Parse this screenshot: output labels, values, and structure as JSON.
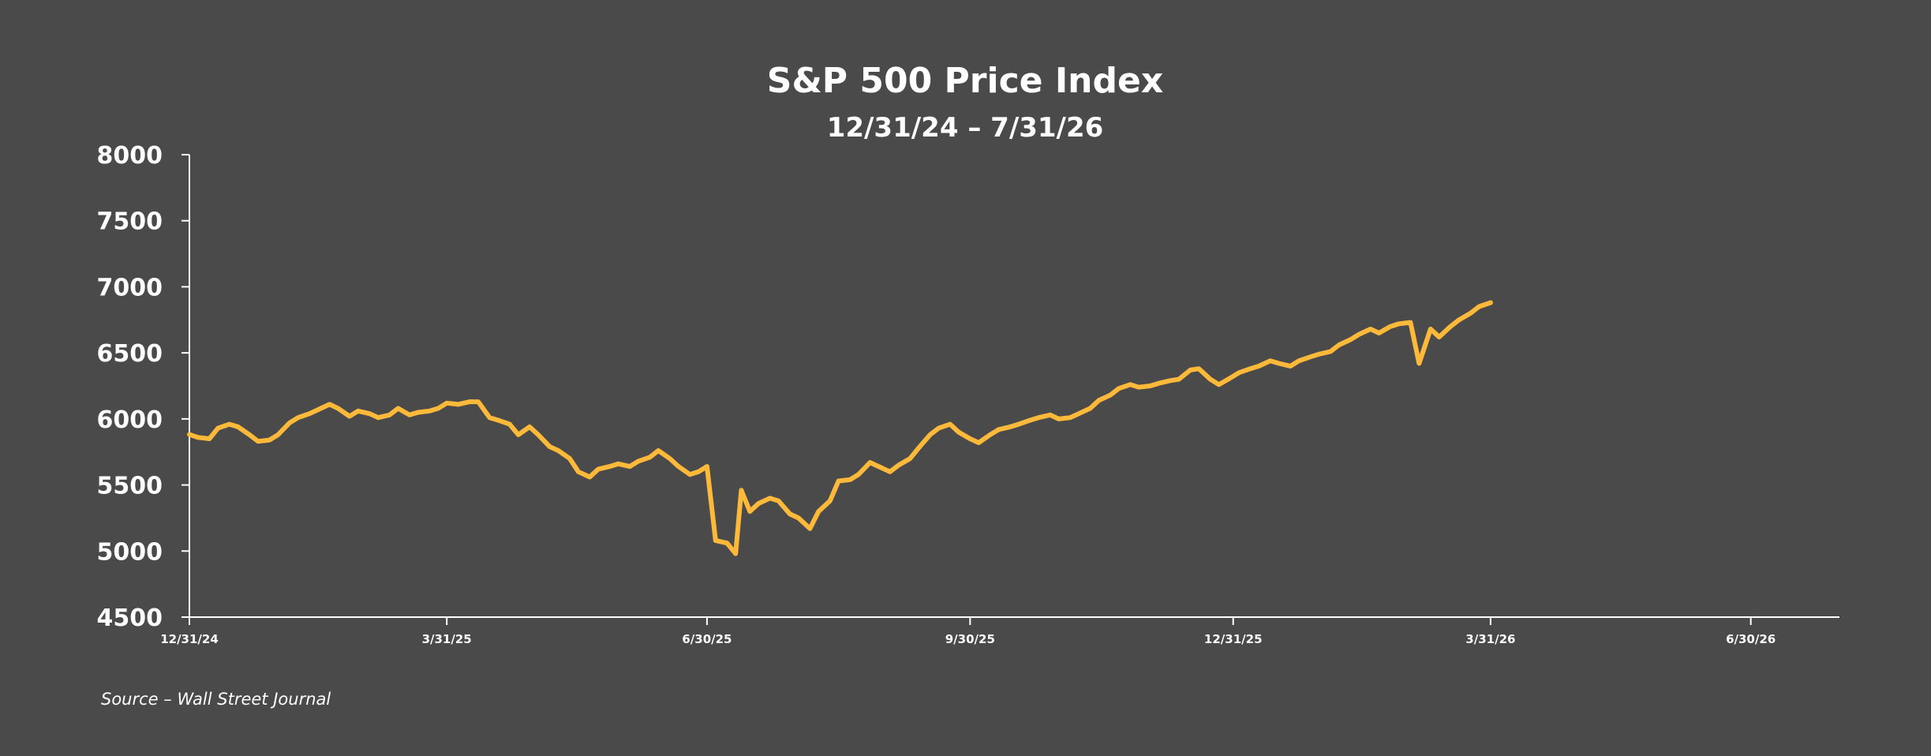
{
  "chart_data": {
    "type": "line",
    "title": "S&P 500 Price Index",
    "subtitle": "12/31/24 – 7/31/26",
    "source": "Source – Wall Street Journal",
    "ylim": [
      4500,
      8000
    ],
    "y_ticks": [
      4500,
      5000,
      5500,
      6000,
      6500,
      7000,
      7500,
      8000
    ],
    "x_ticks": [
      "12/31/24",
      "3/31/25",
      "6/30/25",
      "9/30/25",
      "12/31/25",
      "3/31/26",
      "6/30/26"
    ],
    "x_range": [
      "12/31/24",
      "7/31/26"
    ],
    "grid": false,
    "line_color": "#fdb93a",
    "background_color": "#4a4a4a",
    "series": [
      {
        "values": [
          [
            "12/31/24",
            5882
          ],
          [
            "1/3/25",
            5860
          ],
          [
            "1/7/25",
            5850
          ],
          [
            "1/10/25",
            5930
          ],
          [
            "1/14/25",
            5960
          ],
          [
            "1/17/25",
            5940
          ],
          [
            "1/21/25",
            5880
          ],
          [
            "1/24/25",
            5830
          ],
          [
            "1/28/25",
            5840
          ],
          [
            "1/31/25",
            5880
          ],
          [
            "2/4/25",
            5970
          ],
          [
            "2/7/25",
            6010
          ],
          [
            "2/11/25",
            6040
          ],
          [
            "2/14/25",
            6070
          ],
          [
            "2/18/25",
            6110
          ],
          [
            "2/21/25",
            6080
          ],
          [
            "2/25/25",
            6020
          ],
          [
            "2/28/25",
            6060
          ],
          [
            "3/4/25",
            6040
          ],
          [
            "3/7/25",
            6010
          ],
          [
            "3/11/25",
            6030
          ],
          [
            "3/14/25",
            6080
          ],
          [
            "3/18/25",
            6030
          ],
          [
            "3/21/25",
            6050
          ],
          [
            "3/25/25",
            6060
          ],
          [
            "3/28/25",
            6080
          ],
          [
            "3/31/25",
            6120
          ],
          [
            "4/4/25",
            6110
          ],
          [
            "4/8/25",
            6130
          ],
          [
            "4/11/25",
            6130
          ],
          [
            "4/15/25",
            6010
          ],
          [
            "4/18/25",
            5990
          ],
          [
            "4/22/25",
            5960
          ],
          [
            "4/25/25",
            5880
          ],
          [
            "4/29/25",
            5940
          ],
          [
            "5/2/25",
            5880
          ],
          [
            "5/6/25",
            5790
          ],
          [
            "5/9/25",
            5760
          ],
          [
            "5/13/25",
            5700
          ],
          [
            "5/16/25",
            5600
          ],
          [
            "5/20/25",
            5560
          ],
          [
            "5/23/25",
            5620
          ],
          [
            "5/27/25",
            5640
          ],
          [
            "5/30/25",
            5660
          ],
          [
            "6/3/25",
            5640
          ],
          [
            "6/6/25",
            5680
          ],
          [
            "6/10/25",
            5710
          ],
          [
            "6/13/25",
            5760
          ],
          [
            "6/17/25",
            5700
          ],
          [
            "6/20/25",
            5640
          ],
          [
            "6/24/25",
            5580
          ],
          [
            "6/27/25",
            5600
          ],
          [
            "6/30/25",
            5640
          ],
          [
            "7/3/25",
            5080
          ],
          [
            "7/7/25",
            5060
          ],
          [
            "7/10/25",
            4980
          ],
          [
            "7/12/25",
            5460
          ],
          [
            "7/15/25",
            5300
          ],
          [
            "7/18/25",
            5360
          ],
          [
            "7/22/25",
            5400
          ],
          [
            "7/25/25",
            5380
          ],
          [
            "7/29/25",
            5280
          ],
          [
            "8/1/25",
            5250
          ],
          [
            "8/5/25",
            5170
          ],
          [
            "8/8/25",
            5300
          ],
          [
            "8/12/25",
            5380
          ],
          [
            "8/15/25",
            5530
          ],
          [
            "8/19/25",
            5540
          ],
          [
            "8/22/25",
            5580
          ],
          [
            "8/26/25",
            5670
          ],
          [
            "8/29/25",
            5640
          ],
          [
            "9/2/25",
            5600
          ],
          [
            "9/5/25",
            5650
          ],
          [
            "9/9/25",
            5700
          ],
          [
            "9/12/25",
            5780
          ],
          [
            "9/16/25",
            5880
          ],
          [
            "9/19/25",
            5930
          ],
          [
            "9/23/25",
            5960
          ],
          [
            "9/26/25",
            5900
          ],
          [
            "9/30/25",
            5850
          ],
          [
            "10/3/25",
            5820
          ],
          [
            "10/7/25",
            5880
          ],
          [
            "10/10/25",
            5920
          ],
          [
            "10/14/25",
            5940
          ],
          [
            "10/17/25",
            5960
          ],
          [
            "10/21/25",
            5990
          ],
          [
            "10/24/25",
            6010
          ],
          [
            "10/28/25",
            6030
          ],
          [
            "10/31/25",
            6000
          ],
          [
            "11/4/25",
            6010
          ],
          [
            "11/7/25",
            6040
          ],
          [
            "11/11/25",
            6080
          ],
          [
            "11/14/25",
            6140
          ],
          [
            "11/18/25",
            6180
          ],
          [
            "11/21/25",
            6230
          ],
          [
            "11/25/25",
            6260
          ],
          [
            "11/28/25",
            6240
          ],
          [
            "12/2/25",
            6250
          ],
          [
            "12/5/25",
            6270
          ],
          [
            "12/9/25",
            6290
          ],
          [
            "12/12/25",
            6300
          ],
          [
            "12/16/25",
            6370
          ],
          [
            "12/19/25",
            6380
          ],
          [
            "12/23/25",
            6300
          ],
          [
            "12/26/25",
            6260
          ],
          [
            "12/30/25",
            6310
          ],
          [
            "1/2/26",
            6350
          ],
          [
            "1/6/26",
            6380
          ],
          [
            "1/9/26",
            6400
          ],
          [
            "1/13/26",
            6440
          ],
          [
            "1/16/26",
            6420
          ],
          [
            "1/20/26",
            6400
          ],
          [
            "1/23/26",
            6440
          ],
          [
            "1/27/26",
            6470
          ],
          [
            "1/30/26",
            6490
          ],
          [
            "2/3/26",
            6510
          ],
          [
            "2/6/26",
            6560
          ],
          [
            "2/10/26",
            6600
          ],
          [
            "2/13/26",
            6640
          ],
          [
            "2/17/26",
            6680
          ],
          [
            "2/20/26",
            6650
          ],
          [
            "2/24/26",
            6700
          ],
          [
            "2/27/26",
            6720
          ],
          [
            "3/3/26",
            6730
          ],
          [
            "3/6/26",
            6420
          ],
          [
            "3/10/26",
            6680
          ],
          [
            "3/13/26",
            6620
          ],
          [
            "3/17/26",
            6700
          ],
          [
            "3/20/26",
            6750
          ],
          [
            "3/24/26",
            6800
          ],
          [
            "3/27/26",
            6850
          ],
          [
            "3/31/26",
            6880
          ]
        ]
      }
    ]
  }
}
